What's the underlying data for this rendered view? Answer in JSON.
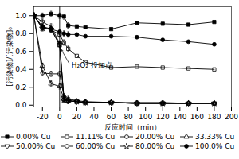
{
  "chart_data": {
    "type": "line",
    "xlabel": "反应时间（min）",
    "ylabel": "[污染物]/[污染物]₀",
    "xlim": [
      -30,
      200
    ],
    "ylim": [
      -0.02,
      1.1
    ],
    "xticks": [
      -20,
      0,
      20,
      40,
      60,
      80,
      100,
      120,
      140,
      160,
      180,
      200
    ],
    "yticks": [
      {
        "value": 0.0,
        "label": "0.0"
      },
      0.2,
      0.4,
      0.6,
      0.8,
      {
        "value": 1.0,
        "label": "1.0"
      }
    ],
    "grid": false,
    "legend": "bottom",
    "x": [
      -30,
      -20,
      -10,
      0,
      5,
      10,
      20,
      30,
      60,
      90,
      120,
      150,
      180
    ],
    "series": [
      {
        "name": "0.00% Cu",
        "color": "black",
        "marker": "filled-square",
        "values": [
          1.0,
          1.0,
          1.02,
          1.0,
          0.99,
          0.89,
          0.88,
          0.87,
          0.85,
          0.92,
          0.91,
          0.9,
          0.93
        ],
        "errors": [
          0.03,
          0.03,
          0.03,
          0.03,
          0.03,
          0.03,
          null,
          null,
          null,
          null,
          null,
          null,
          null
        ]
      },
      {
        "name": "11.11% Cu",
        "color": "black",
        "marker": "square",
        "values": [
          1.0,
          0.87,
          0.84,
          0.79,
          0.7,
          0.63,
          0.55,
          0.48,
          0.42,
          0.43,
          0.42,
          0.41,
          0.4
        ],
        "errors": [
          0.03,
          0.03,
          0.03,
          0.03,
          0.03,
          0.03,
          null,
          null,
          null,
          null,
          null,
          null,
          null
        ]
      },
      {
        "name": "20.00% Cu",
        "color": "black",
        "marker": "circle",
        "values": [
          1.0,
          0.36,
          0.35,
          0.35,
          0.1,
          0.07,
          0.05,
          0.04,
          0.03,
          0.03,
          0.03,
          0.02,
          0.02
        ],
        "errors": [
          0.03,
          0.03,
          0.03,
          0.03,
          0.03,
          0.03,
          null,
          null,
          null,
          null,
          null,
          null,
          null
        ]
      },
      {
        "name": "33.33% Cu",
        "color": "black",
        "marker": "triangle-up",
        "values": [
          1.0,
          0.44,
          0.24,
          0.21,
          0.07,
          0.05,
          0.04,
          0.03,
          0.03,
          0.02,
          0.02,
          0.02,
          0.02
        ],
        "errors": [
          0.03,
          0.03,
          0.03,
          0.03,
          0.03,
          0.03,
          null,
          null,
          null,
          null,
          null,
          null,
          null
        ]
      },
      {
        "name": "50.00% Cu",
        "color": "black",
        "marker": "triangle-down",
        "values": [
          1.0,
          0.93,
          0.88,
          0.69,
          0.08,
          0.05,
          0.04,
          0.03,
          0.03,
          0.02,
          0.02,
          0.02,
          0.02
        ],
        "errors": [
          0.03,
          0.03,
          0.03,
          0.03,
          0.03,
          0.03,
          null,
          null,
          null,
          null,
          null,
          null,
          null
        ]
      },
      {
        "name": "60.00% Cu",
        "color": "black",
        "marker": "circle",
        "values": [
          1.0,
          0.86,
          0.85,
          0.67,
          0.06,
          0.05,
          0.04,
          0.03,
          0.03,
          0.02,
          0.02,
          0.02,
          0.02
        ],
        "errors": [
          0.03,
          0.03,
          0.03,
          0.03,
          0.03,
          0.03,
          null,
          null,
          null,
          null,
          null,
          null,
          null
        ]
      },
      {
        "name": "80.00% Cu",
        "color": "black",
        "marker": "star",
        "values": [
          1.0,
          0.86,
          0.85,
          0.68,
          0.06,
          0.05,
          0.04,
          0.03,
          0.03,
          0.02,
          0.02,
          0.02,
          0.02
        ],
        "errors": [
          0.03,
          0.03,
          0.03,
          0.03,
          0.03,
          0.03,
          null,
          null,
          null,
          null,
          null,
          null,
          null
        ]
      },
      {
        "name": "100.0% Cu",
        "color": "black",
        "marker": "filled-circle",
        "values": [
          1.0,
          0.88,
          0.85,
          0.82,
          0.8,
          0.79,
          0.79,
          0.77,
          0.77,
          0.76,
          0.73,
          0.71,
          0.68
        ],
        "errors": [
          0.03,
          0.03,
          0.03,
          0.03,
          0.03,
          0.03,
          null,
          null,
          null,
          null,
          null,
          null,
          null
        ]
      }
    ],
    "vlines": [
      0
    ],
    "annotations": [
      {
        "text": "H₂O₂ 投加点",
        "x": 12,
        "y": 0.45,
        "arrow_to": [
          2,
          0.62
        ]
      }
    ]
  }
}
